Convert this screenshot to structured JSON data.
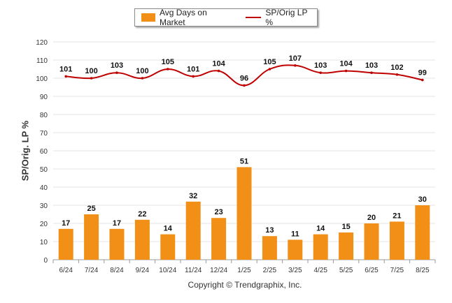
{
  "legend": {
    "bar_label": "Avg Days on Market",
    "line_label": "SP/Orig LP %"
  },
  "copyright": "Copyright © Trendgraphix, Inc.",
  "chart_data": {
    "type": "bar",
    "categories": [
      "6/24",
      "7/24",
      "8/24",
      "9/24",
      "10/24",
      "11/24",
      "12/24",
      "1/25",
      "2/25",
      "3/25",
      "4/25",
      "5/25",
      "6/25",
      "7/25",
      "8/25"
    ],
    "series": [
      {
        "name": "Avg Days on Market",
        "type": "bar",
        "color": "#f28f16",
        "values": [
          17,
          25,
          17,
          22,
          14,
          32,
          23,
          51,
          13,
          11,
          14,
          15,
          20,
          21,
          30
        ]
      },
      {
        "name": "SP/Orig LP %",
        "type": "line",
        "color": "#c00000",
        "values": [
          101,
          100,
          103,
          100,
          105,
          101,
          104,
          96,
          105,
          107,
          103,
          104,
          103,
          102,
          99
        ]
      }
    ],
    "ylabel": "SP/Orig. LP %",
    "ylim": [
      0,
      120
    ],
    "yticks": [
      0,
      10,
      20,
      30,
      40,
      50,
      60,
      70,
      80,
      90,
      100,
      110,
      120
    ],
    "grid": true,
    "legend_position": "top"
  }
}
